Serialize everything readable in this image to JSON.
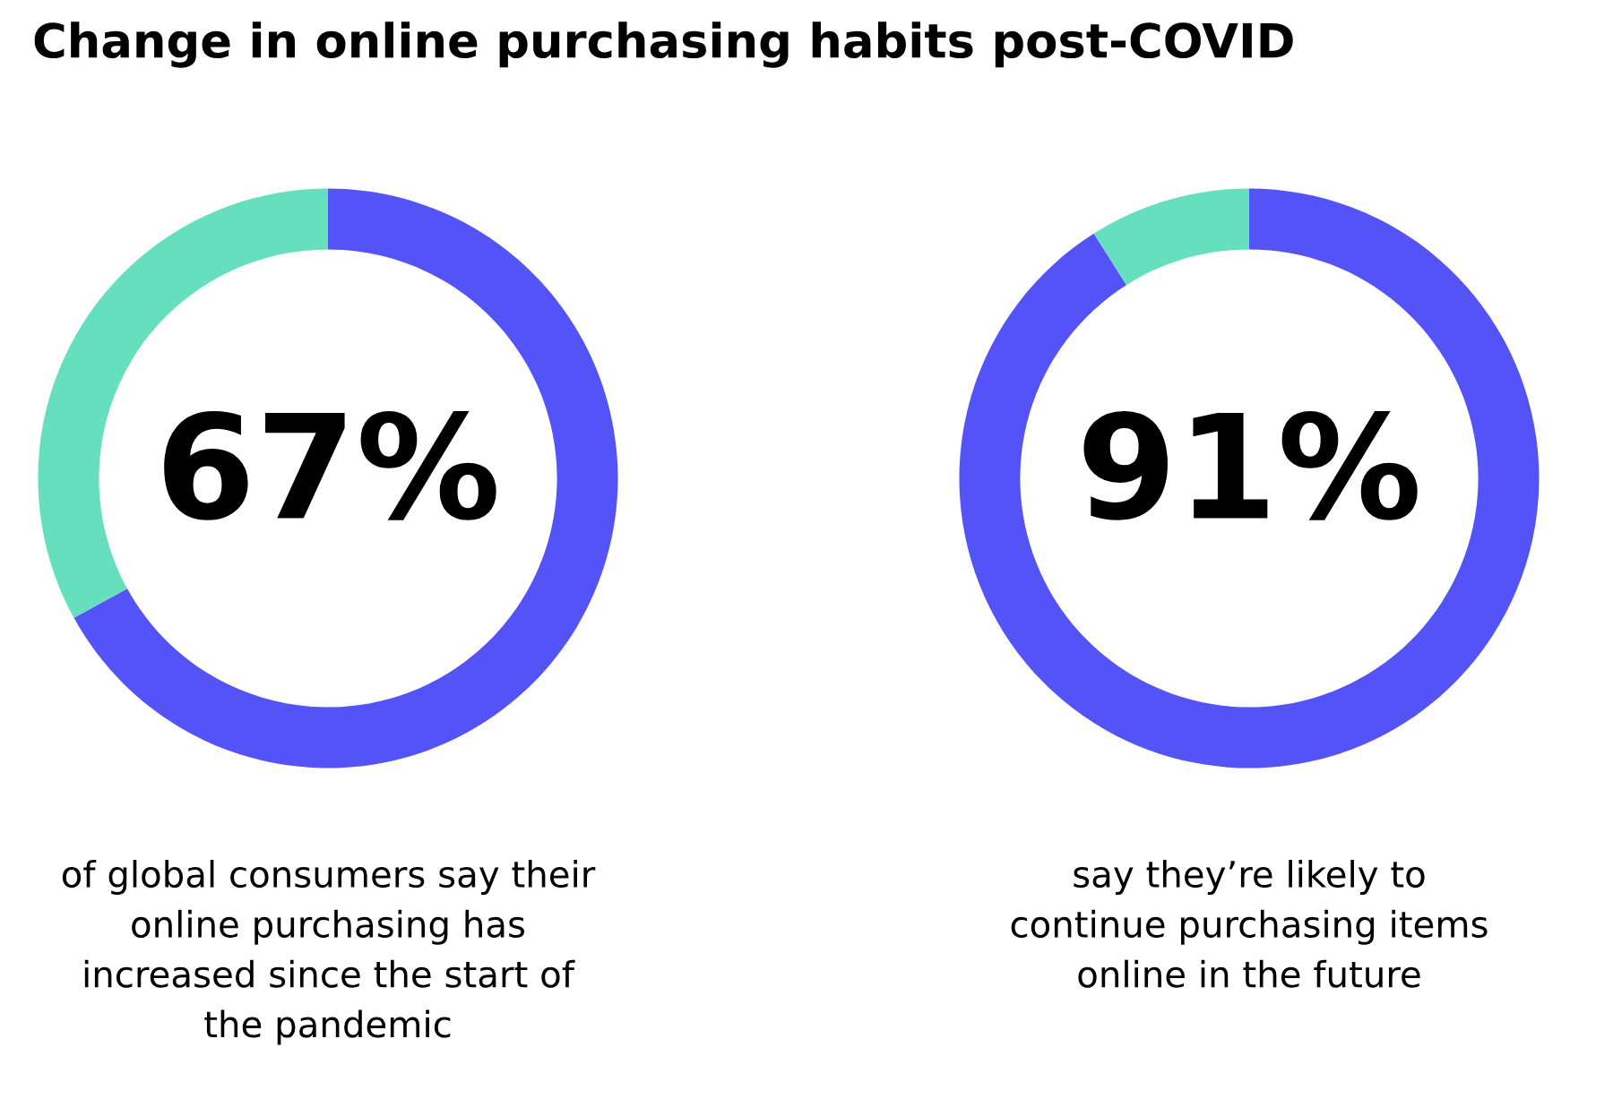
{
  "chart_data": [
    {
      "type": "donut",
      "title": "Change in online purchasing habits post-COVID",
      "categories": [
        null,
        null
      ],
      "values": [
        67,
        33
      ],
      "colors": [
        "#5353f7",
        "#66dfbf"
      ],
      "value_labels": [
        "67%",
        null
      ],
      "annotations": [
        "of global consumers say their\nonline purchasing has\nincreased since the start of\nthe pandemic"
      ]
    },
    {
      "type": "donut",
      "categories": [
        null,
        null
      ],
      "values": [
        91,
        9
      ],
      "colors": [
        "#5353f7",
        "#66dfbf"
      ],
      "value_labels": [
        "91%",
        null
      ],
      "annotations": [
        "say they’re likely to\ncontinue purchasing items\nonline in the future"
      ]
    }
  ]
}
